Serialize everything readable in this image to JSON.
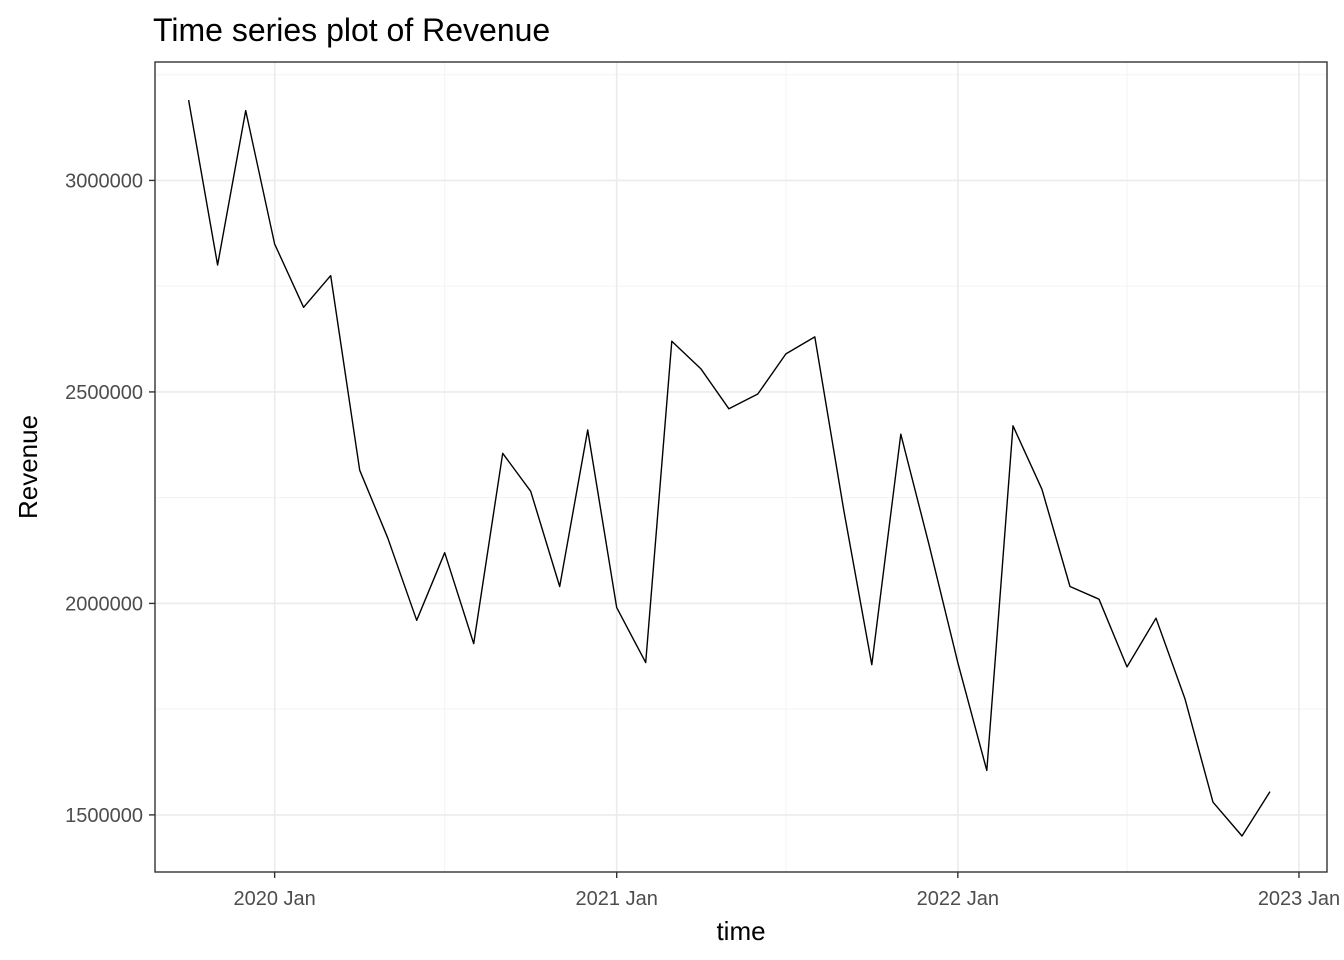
{
  "chart_data": {
    "type": "line",
    "title": "Time series plot of Revenue",
    "xlabel": "time",
    "ylabel": "Revenue",
    "x_axis_kind": "date",
    "xlim": [
      "2019-08-26",
      "2023-01-31"
    ],
    "ylim": [
      1365000,
      3280000
    ],
    "x_ticks": [
      {
        "date": "2020-01-01",
        "label": "2020 Jan"
      },
      {
        "date": "2021-01-01",
        "label": "2021 Jan"
      },
      {
        "date": "2022-01-01",
        "label": "2022 Jan"
      },
      {
        "date": "2023-01-01",
        "label": "2023 Jan"
      }
    ],
    "x_minor_ticks": [
      "2020-07-01",
      "2021-07-01",
      "2022-07-01"
    ],
    "y_ticks": [
      {
        "value": 1500000,
        "label": "1500000"
      },
      {
        "value": 2000000,
        "label": "2000000"
      },
      {
        "value": 2500000,
        "label": "2500000"
      },
      {
        "value": 3000000,
        "label": "3000000"
      }
    ],
    "y_minor_ticks": [
      1750000,
      2250000,
      2750000,
      3250000
    ],
    "grid": true,
    "legend": "none",
    "series": [
      {
        "color": "#000000",
        "x": [
          "2019-10-01",
          "2019-11-01",
          "2019-12-01",
          "2020-01-01",
          "2020-02-01",
          "2020-03-01",
          "2020-04-01",
          "2020-05-01",
          "2020-06-01",
          "2020-07-01",
          "2020-08-01",
          "2020-09-01",
          "2020-10-01",
          "2020-11-01",
          "2020-12-01",
          "2021-01-01",
          "2021-02-01",
          "2021-03-01",
          "2021-04-01",
          "2021-05-01",
          "2021-06-01",
          "2021-07-01",
          "2021-08-01",
          "2021-09-01",
          "2021-10-01",
          "2021-11-01",
          "2021-12-01",
          "2022-01-01",
          "2022-02-01",
          "2022-03-01",
          "2022-04-01",
          "2022-05-01",
          "2022-06-01",
          "2022-07-01",
          "2022-08-01",
          "2022-09-01",
          "2022-10-01",
          "2022-11-01",
          "2022-12-01"
        ],
        "y": [
          3190000,
          2800000,
          3165000,
          2850000,
          2700000,
          2775000,
          2315000,
          2155000,
          1960000,
          2120000,
          1905000,
          2355000,
          2265000,
          2040000,
          2410000,
          1990000,
          1860000,
          2620000,
          2555000,
          2460000,
          2495000,
          2590000,
          2630000,
          2220000,
          1855000,
          2400000,
          2140000,
          1860000,
          1605000,
          2420000,
          2270000,
          2040000,
          2010000,
          1850000,
          1965000,
          1775000,
          1530000,
          1450000,
          1555000
        ]
      }
    ]
  }
}
